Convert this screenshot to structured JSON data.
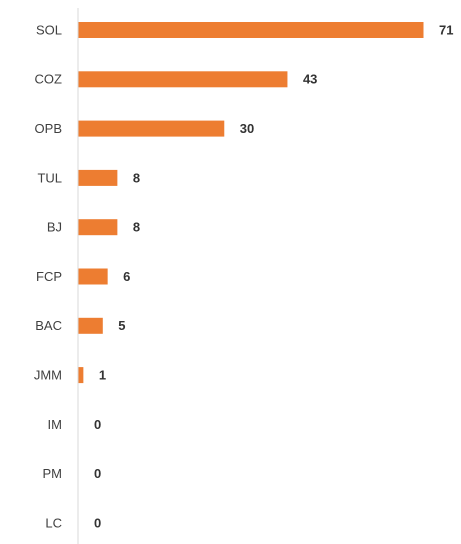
{
  "chart_data": {
    "type": "bar",
    "orientation": "horizontal",
    "categories": [
      "SOL",
      "COZ",
      "OPB",
      "TUL",
      "BJ",
      "FCP",
      "BAC",
      "JMM",
      "IM",
      "PM",
      "LC"
    ],
    "values": [
      71,
      43,
      30,
      8,
      8,
      6,
      5,
      1,
      0,
      0,
      0
    ],
    "color": "#ed7d31"
  }
}
